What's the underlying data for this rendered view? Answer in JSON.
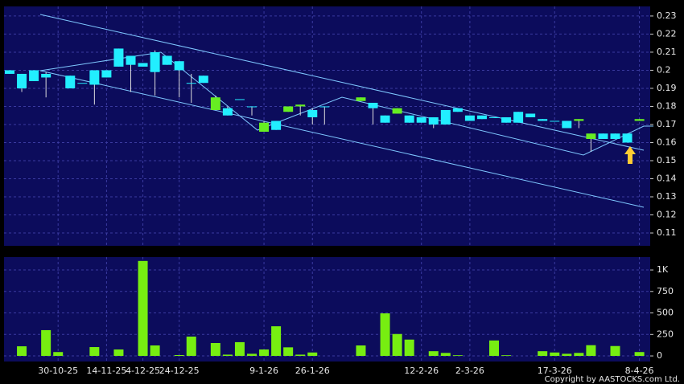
{
  "chart_data": [
    {
      "type": "candlestick",
      "categories": [
        null,
        null,
        null,
        null,
        "30-10-25",
        null,
        null,
        null,
        "14-11-25",
        null,
        null,
        "4-12-25",
        null,
        null,
        "24-12-25",
        null,
        null,
        null,
        null,
        null,
        null,
        "9-1-26",
        null,
        null,
        null,
        "26-1-26",
        null,
        null,
        null,
        null,
        null,
        null,
        null,
        null,
        "12-2-26",
        null,
        null,
        null,
        "2-3-26",
        null,
        null,
        null,
        null,
        null,
        null,
        "17-3-26",
        null,
        null,
        null,
        null,
        null,
        null,
        "8-4-26"
      ],
      "open": [
        0.2,
        0.198,
        0.2,
        0.198,
        null,
        0.197,
        0.193,
        0.2,
        0.2,
        0.212,
        0.208,
        0.204,
        0.21,
        0.208,
        0.205,
        0.193,
        0.197,
        0.178,
        0.179,
        0.184,
        0.18,
        0.166,
        0.172,
        0.177,
        0.18,
        0.178,
        0.18,
        null,
        null,
        0.183,
        0.182,
        0.175,
        0.176,
        0.175,
        0.174,
        0.174,
        0.178,
        0.179,
        0.175,
        0.175,
        0.174,
        0.174,
        0.177,
        0.176,
        0.173,
        0.172,
        0.172,
        0.172,
        0.162,
        0.165,
        0.165,
        0.165,
        0.172
      ],
      "high": [
        0.2,
        0.198,
        0.2,
        0.199,
        null,
        0.197,
        0.193,
        0.2,
        0.2,
        0.212,
        0.208,
        0.204,
        0.211,
        0.208,
        0.205,
        0.198,
        0.197,
        0.186,
        0.18,
        0.184,
        0.18,
        0.172,
        0.172,
        0.18,
        0.181,
        0.179,
        0.18,
        null,
        null,
        0.185,
        0.182,
        0.175,
        0.179,
        0.175,
        0.174,
        0.174,
        0.178,
        0.179,
        0.175,
        0.175,
        0.174,
        0.174,
        0.177,
        0.176,
        0.173,
        0.172,
        0.172,
        0.173,
        0.165,
        0.165,
        0.165,
        0.165,
        0.173
      ],
      "low": [
        0.198,
        0.188,
        0.194,
        0.185,
        null,
        0.19,
        0.193,
        0.181,
        0.196,
        0.202,
        0.188,
        0.202,
        0.186,
        0.203,
        0.185,
        0.182,
        0.193,
        0.178,
        0.175,
        0.184,
        0.175,
        0.166,
        0.167,
        0.177,
        0.175,
        0.17,
        0.17,
        null,
        null,
        0.183,
        0.17,
        0.171,
        0.176,
        0.171,
        0.171,
        0.168,
        0.17,
        0.177,
        0.172,
        0.173,
        0.174,
        0.171,
        0.171,
        0.174,
        0.172,
        0.172,
        0.168,
        0.168,
        0.155,
        0.162,
        0.162,
        0.16,
        0.172
      ],
      "close": [
        0.198,
        0.19,
        0.194,
        0.196,
        null,
        0.19,
        0.193,
        0.192,
        0.196,
        0.202,
        0.203,
        0.202,
        0.199,
        0.203,
        0.2,
        0.193,
        0.193,
        0.185,
        0.175,
        0.184,
        0.18,
        0.171,
        0.167,
        0.18,
        0.181,
        0.174,
        0.18,
        null,
        null,
        0.185,
        0.179,
        0.171,
        0.179,
        0.171,
        0.171,
        0.17,
        0.17,
        0.177,
        0.172,
        0.173,
        0.174,
        0.171,
        0.171,
        0.174,
        0.172,
        0.172,
        0.168,
        0.173,
        0.165,
        0.162,
        0.162,
        0.16,
        0.173
      ],
      "up_color": "#66ee22",
      "down_color": "#22eeff",
      "ylim": [
        0.1029,
        0.2353
      ],
      "yticks": [
        0.11,
        0.12,
        0.13,
        0.14,
        0.15,
        0.16,
        0.17,
        0.18,
        0.19,
        0.2,
        0.21,
        0.22,
        0.23
      ],
      "grid": true
    },
    {
      "type": "bar",
      "values": [
        0,
        112,
        0,
        300,
        45,
        0,
        0,
        103,
        0,
        75,
        0,
        1105,
        122,
        0,
        10,
        225,
        0,
        150,
        15,
        160,
        25,
        75,
        345,
        100,
        15,
        40,
        0,
        0,
        0,
        122,
        0,
        495,
        255,
        190,
        0,
        55,
        35,
        8,
        0,
        0,
        180,
        8,
        0,
        0,
        55,
        40,
        25,
        35,
        125,
        0,
        115,
        0,
        45
      ],
      "color": "#77ee11",
      "ylim": [
        -65,
        1150
      ],
      "yticks": [
        0,
        250,
        500,
        750,
        {
          "value": 1000,
          "label": "1K"
        }
      ],
      "grid": true
    }
  ],
  "footer": "Copyright by AASTOCKS.com Ltd."
}
